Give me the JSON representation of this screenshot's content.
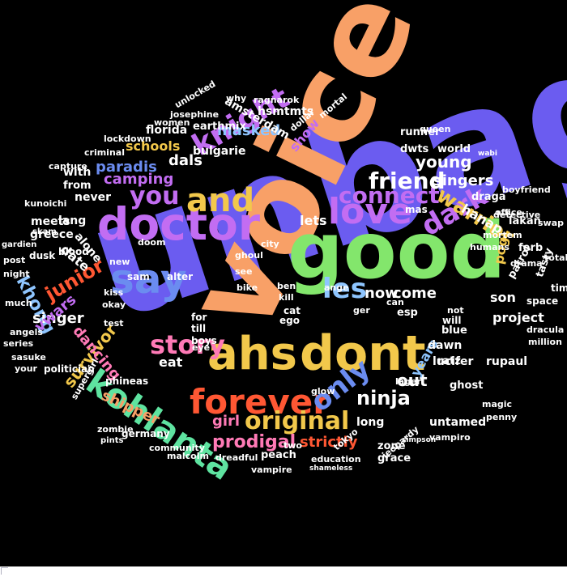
{
  "wordcloud": {
    "background": "#000000",
    "words": [
      "unbag",
      "voice",
      "good",
      "doctor",
      "ahs",
      "dont",
      "forever",
      "love",
      "say",
      "and",
      "kohlanta",
      "knight",
      "original",
      "story",
      "dark",
      "warrior",
      "connect",
      "friend",
      "les",
      "only",
      "junior",
      "you",
      "ninja",
      "prodigal",
      "strictly",
      "young",
      "singers",
      "now",
      "come",
      "out",
      "girl",
      "years",
      "khong",
      "survivor",
      "shipper",
      "dancing",
      "paradis",
      "camping",
      "dals",
      "schools",
      "masked",
      "show",
      "hanap",
      "lets",
      "pogi",
      "project",
      "son",
      "singer",
      "vwars",
      "date",
      "lang",
      "alone",
      "never",
      "with",
      "from",
      "meets",
      "greece",
      "florida",
      "bulgarie",
      "amsterdam",
      "hsmtmts",
      "earthmix",
      "dwts",
      "world",
      "runner",
      "queen",
      "lucifer",
      "dawn",
      "blue",
      "rupaul",
      "untamed",
      "ghost",
      "long",
      "grace",
      "peach",
      "zone",
      "eat",
      "ratz",
      "esp",
      "tasty",
      "patrol",
      "ferb",
      "lakan",
      "draga",
      "mas",
      "time",
      "space",
      "dracula",
      "million",
      "cat",
      "ego",
      "till",
      "will",
      "not",
      "for",
      "boys",
      "eye",
      "test",
      "okay",
      "kiss",
      "sam",
      "alter",
      "doom",
      "new",
      "blood",
      "dusk",
      "post",
      "night",
      "much",
      "angels",
      "series",
      "sasuke",
      "politician",
      "phineas",
      "germany",
      "community",
      "malcolm",
      "dreadful",
      "vampire",
      "education",
      "two",
      "shameless",
      "supergirl",
      "zombie",
      "magic",
      "penny",
      "vampiro",
      "tokyo",
      "jeopardy",
      "detective",
      "office",
      "mortem",
      "humans",
      "simpson",
      "lager",
      "glow",
      "can",
      "ger",
      "ange",
      "bike",
      "kill",
      "ben",
      "see",
      "ghoul",
      "city",
      "pints",
      "dollar",
      "mortal",
      "ragnarok",
      "why",
      "unlocked",
      "women",
      "josephine",
      "lockdown",
      "criminal",
      "capture",
      "kunoichi",
      "gardien",
      "skam",
      "your",
      "swap",
      "total",
      "drama",
      "boyfriend",
      "wabi",
      "skam",
      "runner"
    ],
    "colors": [
      "#f8a067",
      "#6b5cf0",
      "#83e66c",
      "#c26df2",
      "#f2c84b",
      "#ff5733",
      "#5ee3a0",
      "#ff7ab6",
      "#8ec5ff",
      "#e0e36b"
    ]
  }
}
